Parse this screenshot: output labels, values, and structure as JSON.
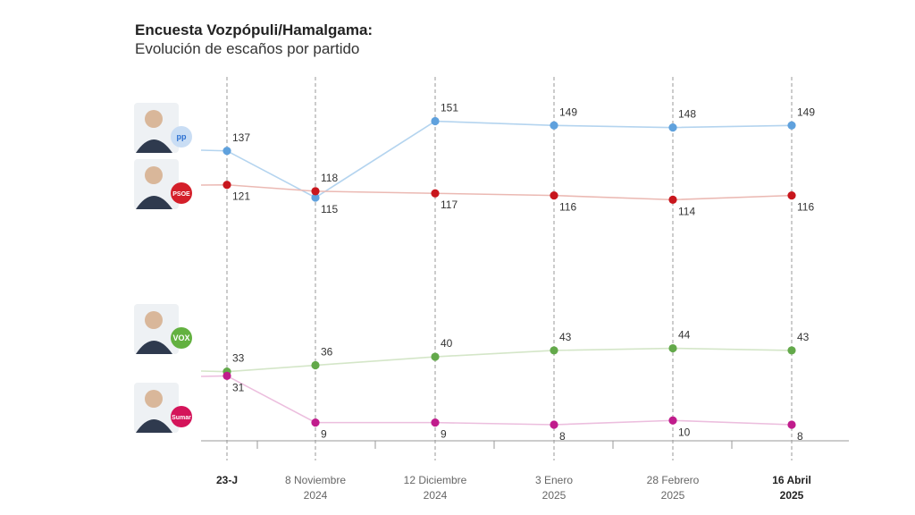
{
  "header": {
    "title": "Encuesta Vozpópuli/Hamalgama:",
    "subtitle": "Evolución de escaños por partido"
  },
  "parties": [
    {
      "id": "pp",
      "badge": "pp",
      "badge_color": "#2a6fd1",
      "badge_bg": "#c9ddf4"
    },
    {
      "id": "psoe",
      "badge": "PSOE",
      "badge_color": "#ffffff",
      "badge_bg": "#d41f2a"
    },
    {
      "id": "vox",
      "badge": "VOX",
      "badge_color": "#ffffff",
      "badge_bg": "#63b140"
    },
    {
      "id": "sumar",
      "badge": "Sumar",
      "badge_color": "#ffffff",
      "badge_bg": "#d4145a"
    }
  ],
  "chart_data": {
    "type": "line",
    "categories": [
      {
        "line1": "23-J",
        "line2": "",
        "bold": true
      },
      {
        "line1": "8 Noviembre",
        "line2": "2024",
        "bold": false
      },
      {
        "line1": "12 Diciembre",
        "line2": "2024",
        "bold": false
      },
      {
        "line1": "3 Enero",
        "line2": "2025",
        "bold": false
      },
      {
        "line1": "28 Febrero",
        "line2": "2025",
        "bold": false
      },
      {
        "line1": "16 Abril",
        "line2": "2025",
        "bold": true
      }
    ],
    "series": [
      {
        "id": "pp",
        "values": [
          137,
          115,
          151,
          149,
          148,
          149
        ],
        "color": "#5fa1dd",
        "line_color": "#b4d4ef",
        "label_pos": [
          "above",
          "below",
          "above",
          "above",
          "above",
          "above"
        ]
      },
      {
        "id": "psoe",
        "values": [
          121,
          118,
          117,
          116,
          114,
          116
        ],
        "color": "#c8161d",
        "line_color": "#ebb9b3",
        "label_pos": [
          "below",
          "above",
          "below",
          "below",
          "below",
          "below"
        ]
      },
      {
        "id": "vox",
        "values": [
          33,
          36,
          40,
          43,
          44,
          43
        ],
        "color": "#63a94a",
        "line_color": "#d4e6c8",
        "label_pos": [
          "above",
          "above",
          "above",
          "above",
          "above",
          "above"
        ]
      },
      {
        "id": "sumar",
        "values": [
          31,
          9,
          9,
          8,
          10,
          8
        ],
        "color": "#c01c8c",
        "line_color": "#ecbede",
        "label_pos": [
          "below",
          "below",
          "below",
          "below",
          "below",
          "below"
        ]
      }
    ],
    "ylim": [
      0,
      160
    ],
    "grid": false
  }
}
